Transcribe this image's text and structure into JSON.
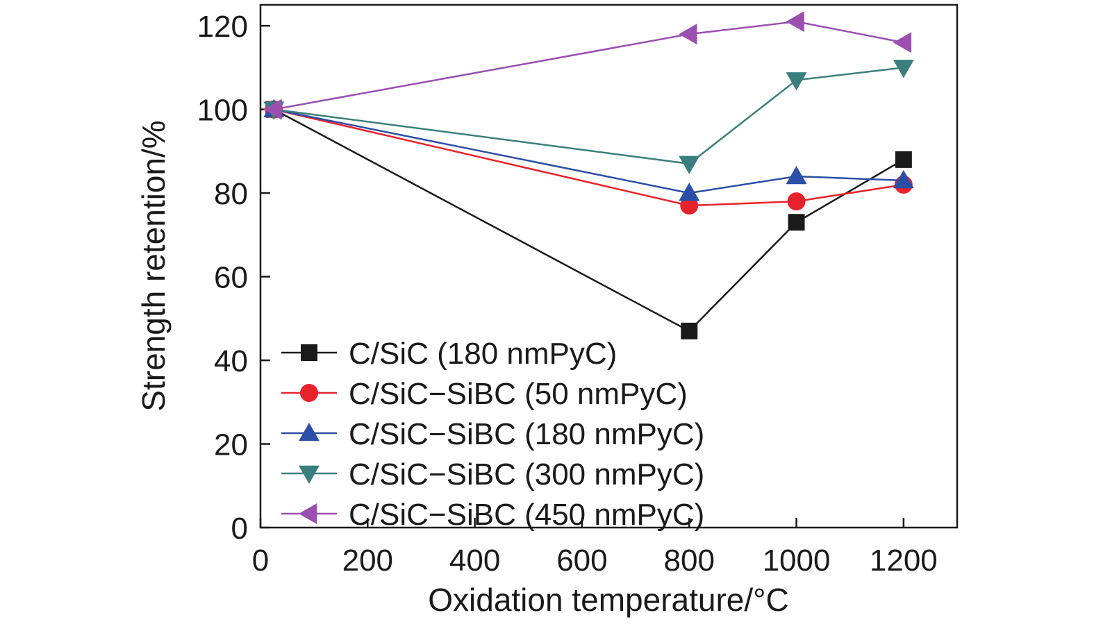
{
  "chart_data": {
    "type": "line",
    "title": "",
    "xlabel": "Oxidation temperature/°C",
    "ylabel": "Strength retention/%",
    "xlim": [
      0,
      1300
    ],
    "ylim": [
      0,
      125
    ],
    "xticks": [
      0,
      200,
      400,
      600,
      800,
      1000,
      1200
    ],
    "yticks": [
      0,
      20,
      40,
      60,
      80,
      100,
      120
    ],
    "grid": false,
    "legend_position": "bottom-left",
    "series": [
      {
        "name": "C/SiC (180 nmPyC)",
        "color": "#1a1a1a",
        "marker": "square",
        "x": [
          25,
          800,
          1000,
          1200
        ],
        "y": [
          100,
          47,
          73,
          88
        ]
      },
      {
        "name": "C/SiC−SiBC (50 nmPyC)",
        "color": "#e8222b",
        "marker": "circle",
        "x": [
          25,
          800,
          1000,
          1200
        ],
        "y": [
          100,
          77,
          78,
          82
        ]
      },
      {
        "name": "C/SiC−SiBC (180 nmPyC)",
        "color": "#2b4ea6",
        "marker": "triangle-up",
        "x": [
          25,
          800,
          1000,
          1200
        ],
        "y": [
          100,
          80,
          84,
          83
        ]
      },
      {
        "name": "C/SiC−SiBC (300 nmPyC)",
        "color": "#3a7f7d",
        "marker": "triangle-down",
        "x": [
          25,
          800,
          1000,
          1200
        ],
        "y": [
          100,
          87,
          107,
          110
        ]
      },
      {
        "name": "C/SiC−SiBC (450 nmPyC)",
        "color": "#9b4fb0",
        "marker": "triangle-left",
        "x": [
          25,
          800,
          1000,
          1200
        ],
        "y": [
          100,
          118,
          121,
          116
        ]
      }
    ]
  }
}
